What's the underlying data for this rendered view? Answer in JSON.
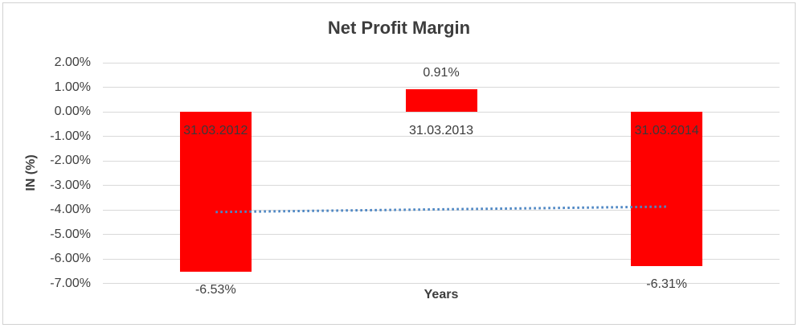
{
  "chart_data": {
    "type": "bar",
    "title": "Net Profit Margin",
    "xlabel": "Years",
    "ylabel": "IN (%)",
    "categories": [
      "31.03.2012",
      "31.03.2013",
      "31.03.2014"
    ],
    "values": [
      -6.53,
      0.91,
      -6.31
    ],
    "value_labels": [
      "-6.53%",
      "0.91%",
      "-6.31%"
    ],
    "ylim": [
      -7,
      2
    ],
    "yticks": [
      {
        "value": 2,
        "label": "2.00%"
      },
      {
        "value": 1,
        "label": "1.00%"
      },
      {
        "value": 0,
        "label": "0.00%"
      },
      {
        "value": -1,
        "label": "-1.00%"
      },
      {
        "value": -2,
        "label": "-2.00%"
      },
      {
        "value": -3,
        "label": "-3.00%"
      },
      {
        "value": -4,
        "label": "-4.00%"
      },
      {
        "value": -5,
        "label": "-5.00%"
      },
      {
        "value": -6,
        "label": "-6.00%"
      },
      {
        "value": -7,
        "label": "-7.00%"
      }
    ],
    "grid": true,
    "legend": "none",
    "bar_color": "#ff0000",
    "trendline": {
      "type": "linear",
      "style": "dotted",
      "color": "#4e87c4",
      "start_value": -4.09,
      "end_value": -3.87
    }
  }
}
